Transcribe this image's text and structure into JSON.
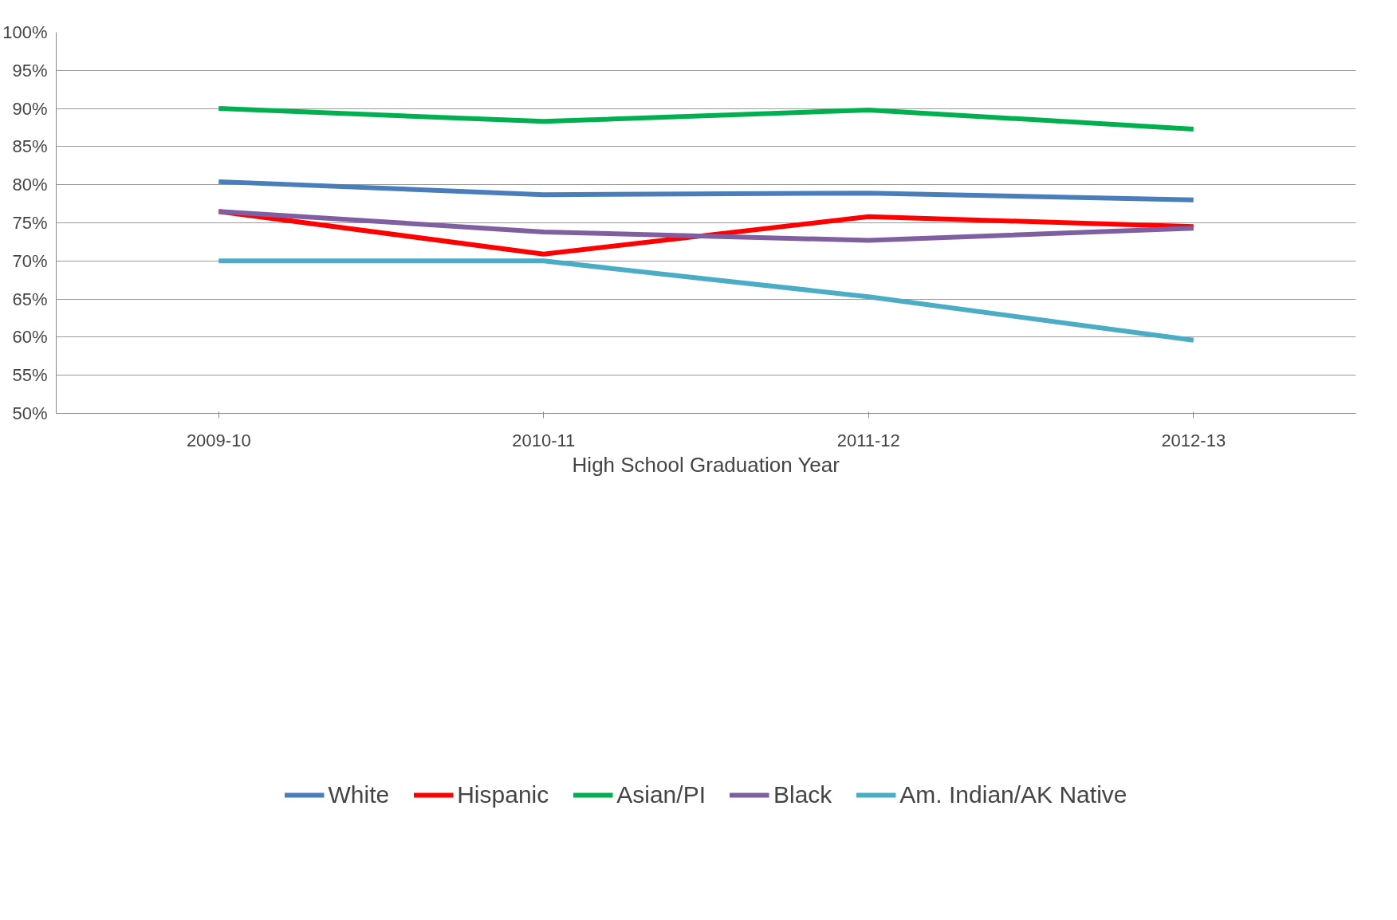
{
  "chart_data": {
    "type": "line",
    "xlabel": "High School Graduation Year",
    "categories": [
      "2009-10",
      "2010-11",
      "2011-12",
      "2012-13"
    ],
    "series": [
      {
        "name": "White",
        "color": "#4a7ebb",
        "values": [
          80.4,
          78.7,
          78.9,
          78.0
        ]
      },
      {
        "name": "Hispanic",
        "color": "#ff0000",
        "values": [
          76.5,
          70.9,
          75.8,
          74.5
        ]
      },
      {
        "name": "Asian/PI",
        "color": "#00b050",
        "values": [
          90.0,
          88.3,
          89.8,
          87.3
        ]
      },
      {
        "name": "Black",
        "color": "#7f5fa0",
        "values": [
          76.5,
          73.8,
          72.7,
          74.3
        ]
      },
      {
        "name": "Am. Indian/AK Native",
        "color": "#4bacc6",
        "values": [
          70.0,
          70.0,
          65.3,
          59.6
        ]
      }
    ],
    "ylim": [
      50,
      100
    ],
    "yticks": [
      {
        "value": 50,
        "label": "50%"
      },
      {
        "value": 55,
        "label": "55%"
      },
      {
        "value": 60,
        "label": "60%"
      },
      {
        "value": 65,
        "label": "65%"
      },
      {
        "value": 70,
        "label": "70%"
      },
      {
        "value": 75,
        "label": "75%"
      },
      {
        "value": 80,
        "label": "80%"
      },
      {
        "value": 85,
        "label": "85%"
      },
      {
        "value": 90,
        "label": "90%"
      },
      {
        "value": 95,
        "label": "95%"
      },
      {
        "value": 100,
        "label": "100%"
      }
    ],
    "grid": "y",
    "legend": "bottom",
    "marker": "none",
    "line_style": "solid"
  }
}
